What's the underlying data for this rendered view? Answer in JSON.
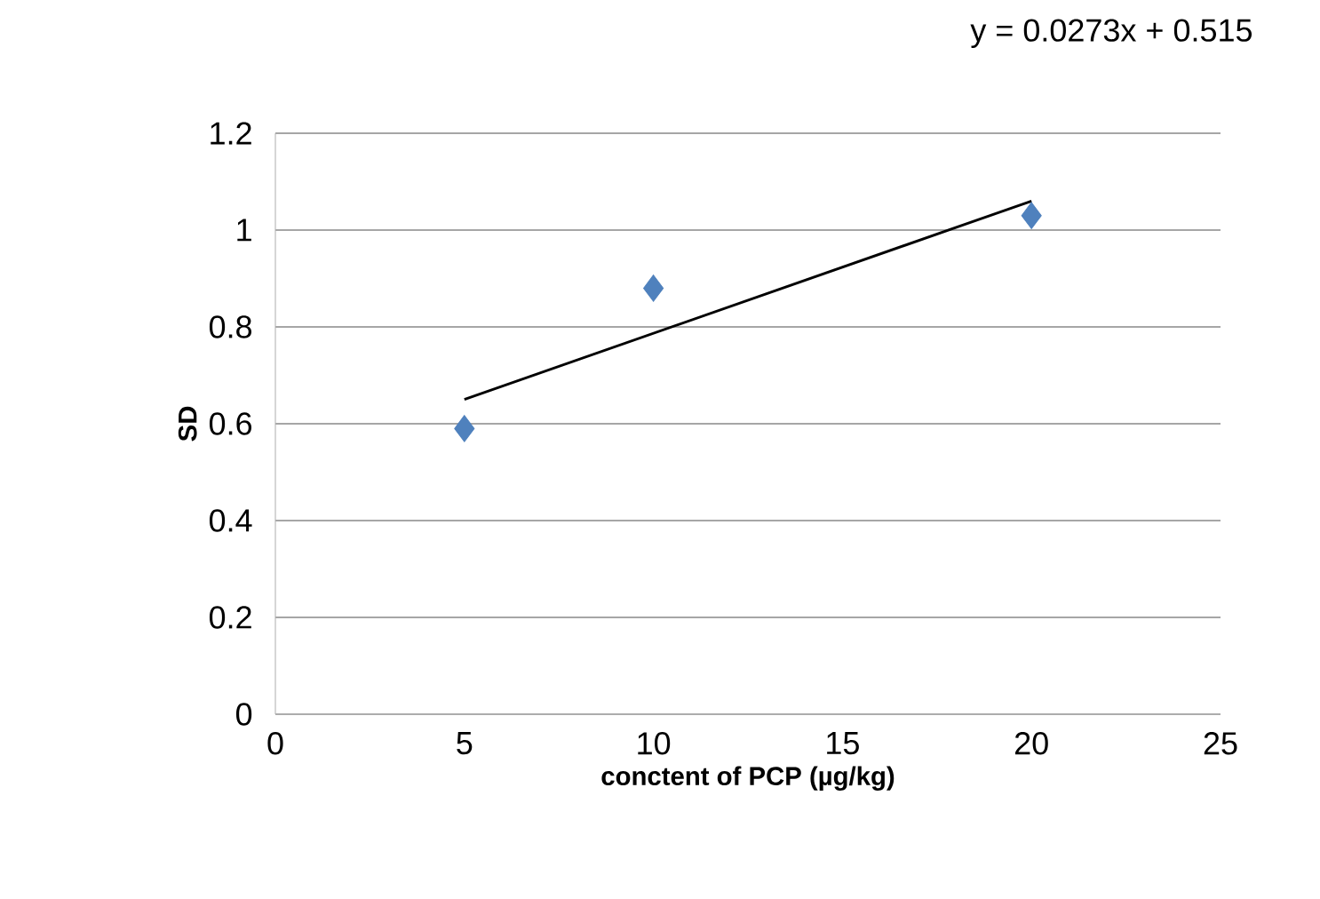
{
  "chart_data": {
    "type": "scatter",
    "xlabel": "conctent of PCP (µg/kg)",
    "ylabel": "SD",
    "xlim": [
      0,
      25
    ],
    "ylim": [
      0,
      1.2
    ],
    "xticks": [
      0,
      5,
      10,
      15,
      20,
      25
    ],
    "yticks": [
      0,
      0.2,
      0.4,
      0.6,
      0.8,
      1,
      1.2
    ],
    "grid": "y",
    "series": [
      {
        "marker": "diamond",
        "color": "#4f81bd",
        "x": [
          5,
          10,
          20
        ],
        "values": [
          0.59,
          0.88,
          1.03
        ]
      },
      {
        "type": "line",
        "marker": "none",
        "color": "#000000",
        "x": [
          5,
          20
        ],
        "values": [
          0.65,
          1.06
        ]
      }
    ],
    "annotations": [
      "y = 0.0273x + 0.515"
    ]
  }
}
